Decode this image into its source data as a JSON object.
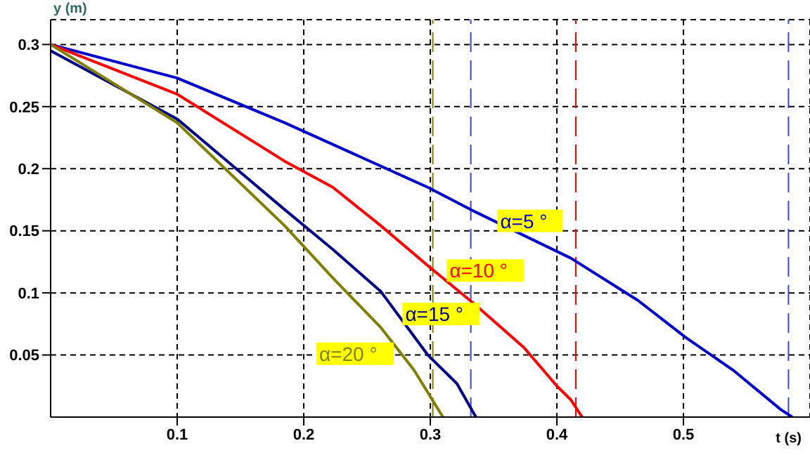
{
  "chart_data": {
    "type": "line",
    "xlabel": "t (s)",
    "ylabel": "y (m)",
    "xlim": [
      0,
      0.6
    ],
    "ylim": [
      0,
      0.32
    ],
    "xticks": [
      0.1,
      0.2,
      0.3,
      0.4,
      0.5
    ],
    "yticks": [
      0.05,
      0.1,
      0.15,
      0.2,
      0.25,
      0.3
    ],
    "grid": true,
    "marker": "none",
    "line_style": "solid",
    "series": [
      {
        "name": "α=5 °",
        "color": "#0000cc",
        "x": [
          0,
          0.1,
          0.185,
          0.298,
          0.336,
          0.411,
          0.464,
          0.502,
          0.539,
          0.577,
          0.586
        ],
        "values": [
          0.3,
          0.273,
          0.237,
          0.185,
          0.165,
          0.128,
          0.094,
          0.064,
          0.038,
          0.006,
          0
        ]
      },
      {
        "name": "α=10 °",
        "color": "#ff0000",
        "x": [
          0,
          0.1,
          0.185,
          0.223,
          0.261,
          0.298,
          0.336,
          0.374,
          0.4,
          0.411,
          0.42
        ],
        "values": [
          0.3,
          0.26,
          0.206,
          0.185,
          0.154,
          0.122,
          0.09,
          0.056,
          0.025,
          0.014,
          0
        ]
      },
      {
        "name": "α=15 °",
        "color": "#00008b",
        "x": [
          0,
          0.1,
          0.185,
          0.223,
          0.261,
          0.298,
          0.321,
          0.336
        ],
        "values": [
          0.295,
          0.24,
          0.167,
          0.135,
          0.101,
          0.05,
          0.027,
          0
        ]
      },
      {
        "name": "α=20 °",
        "color": "#808000",
        "x": [
          0,
          0.1,
          0.185,
          0.223,
          0.261,
          0.287,
          0.31
        ],
        "values": [
          0.3,
          0.237,
          0.154,
          0.112,
          0.072,
          0.038,
          0
        ]
      }
    ],
    "ref_lines": [
      {
        "axis": "x",
        "value": 0.302,
        "color": "#808000",
        "line_style": "dashed"
      },
      {
        "axis": "x",
        "value": 0.332,
        "color": "#4040e0",
        "line_style": "dashed"
      },
      {
        "axis": "x",
        "value": 0.415,
        "color": "#ff0000",
        "line_style": "dashed"
      },
      {
        "axis": "x",
        "value": 0.583,
        "color": "#4040e0",
        "line_style": "dashed"
      }
    ]
  }
}
